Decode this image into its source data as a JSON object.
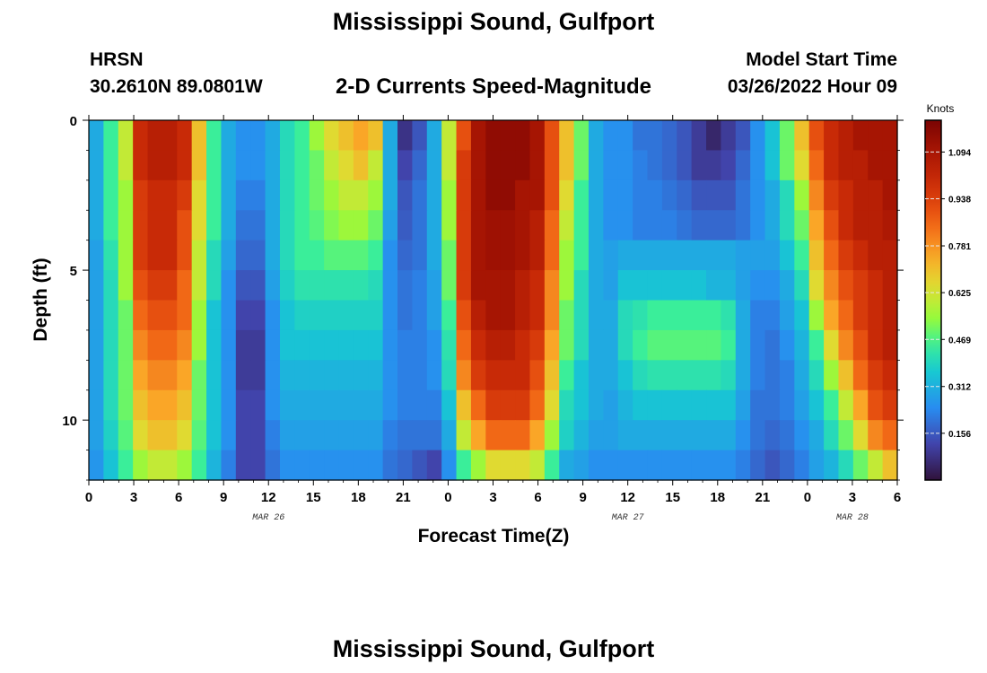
{
  "page": {
    "title": "Mississippi Sound, Gulfport",
    "station_id": "HRSN",
    "station_coords": "30.2610N  89.0801W",
    "subtitle": "2-D Currents Speed-Magnitude",
    "model_start_label": "Model Start Time",
    "model_start_value": "03/26/2022 Hour 09",
    "footer_title": "Mississippi Sound, Gulfport"
  },
  "chart_data": {
    "type": "heatmap",
    "title": "2-D Currents Speed-Magnitude",
    "xlabel": "Forecast Time(Z)",
    "ylabel": "Depth (ft)",
    "x_tick_labels": [
      "0",
      "3",
      "6",
      "9",
      "12",
      "15",
      "18",
      "21",
      "0",
      "3",
      "6",
      "9",
      "12",
      "15",
      "18",
      "21",
      "0",
      "3",
      "6"
    ],
    "x_hours_since_mar26_00z": [
      0,
      3,
      6,
      9,
      12,
      15,
      18,
      21,
      24,
      27,
      30,
      33,
      36,
      39,
      42,
      45,
      48,
      51,
      54
    ],
    "date_labels": [
      {
        "label": "MAR 26",
        "hour": 12
      },
      {
        "label": "MAR 27",
        "hour": 36
      },
      {
        "label": "MAR 28",
        "hour": 51
      }
    ],
    "y_tick_labels": [
      "0",
      "5",
      "10"
    ],
    "y_ticks_ft": [
      0,
      5,
      10
    ],
    "ylim": [
      0,
      12
    ],
    "y_inverted": true,
    "colorbar": {
      "label": "Knots",
      "ticks": [
        "1.094",
        "0.938",
        "0.781",
        "0.625",
        "0.469",
        "0.312",
        "0.156"
      ],
      "tick_values": [
        1.094,
        0.938,
        0.781,
        0.625,
        0.469,
        0.312,
        0.156
      ],
      "range": [
        0,
        1.2
      ],
      "colormap": "turbo"
    },
    "depth_rows_ft": [
      0.5,
      1.5,
      2.5,
      3.5,
      4.5,
      5.5,
      6.5,
      7.5,
      8.5,
      9.5,
      10.5,
      11.5
    ],
    "time_columns_hours": [
      0,
      1,
      2,
      3,
      4,
      5,
      6,
      7,
      8,
      9,
      10,
      11,
      12,
      13,
      14,
      15,
      16,
      17,
      18,
      19,
      20,
      21,
      22,
      23,
      24,
      25,
      26,
      27,
      28,
      29,
      30,
      31,
      32,
      33,
      34,
      35,
      36,
      37,
      38,
      39,
      40,
      41,
      42,
      43,
      44,
      45,
      46,
      47,
      48,
      49,
      50,
      51,
      52,
      53,
      54
    ],
    "speed_knots": [
      [
        0.3,
        0.45,
        0.6,
        1.0,
        1.05,
        1.05,
        1.0,
        0.7,
        0.45,
        0.3,
        0.25,
        0.25,
        0.3,
        0.4,
        0.45,
        0.55,
        0.65,
        0.7,
        0.75,
        0.7,
        0.3,
        0.08,
        0.15,
        0.3,
        0.6,
        0.9,
        1.1,
        1.15,
        1.15,
        1.15,
        1.1,
        0.9,
        0.7,
        0.5,
        0.3,
        0.25,
        0.25,
        0.2,
        0.2,
        0.18,
        0.15,
        0.1,
        0.05,
        0.1,
        0.15,
        0.25,
        0.35,
        0.5,
        0.7,
        0.9,
        1.0,
        1.05,
        1.1,
        1.1,
        1.1
      ],
      [
        0.3,
        0.45,
        0.6,
        1.0,
        1.05,
        1.05,
        1.0,
        0.7,
        0.45,
        0.3,
        0.25,
        0.25,
        0.3,
        0.4,
        0.45,
        0.5,
        0.6,
        0.65,
        0.7,
        0.6,
        0.3,
        0.12,
        0.18,
        0.3,
        0.6,
        0.95,
        1.1,
        1.15,
        1.15,
        1.15,
        1.1,
        0.9,
        0.7,
        0.5,
        0.3,
        0.25,
        0.25,
        0.22,
        0.2,
        0.18,
        0.15,
        0.1,
        0.1,
        0.12,
        0.18,
        0.25,
        0.35,
        0.5,
        0.65,
        0.85,
        1.0,
        1.05,
        1.05,
        1.1,
        1.1
      ],
      [
        0.3,
        0.45,
        0.55,
        0.95,
        1.0,
        1.0,
        0.95,
        0.65,
        0.45,
        0.3,
        0.22,
        0.22,
        0.3,
        0.4,
        0.45,
        0.5,
        0.55,
        0.6,
        0.6,
        0.55,
        0.3,
        0.15,
        0.2,
        0.3,
        0.55,
        0.95,
        1.1,
        1.15,
        1.15,
        1.1,
        1.1,
        0.9,
        0.65,
        0.45,
        0.3,
        0.25,
        0.25,
        0.22,
        0.22,
        0.2,
        0.18,
        0.15,
        0.15,
        0.15,
        0.2,
        0.25,
        0.3,
        0.4,
        0.55,
        0.8,
        0.95,
        1.0,
        1.05,
        1.05,
        1.1
      ],
      [
        0.3,
        0.45,
        0.55,
        0.95,
        1.0,
        1.0,
        0.9,
        0.65,
        0.45,
        0.3,
        0.2,
        0.2,
        0.3,
        0.4,
        0.45,
        0.48,
        0.52,
        0.55,
        0.55,
        0.5,
        0.28,
        0.16,
        0.2,
        0.3,
        0.55,
        0.95,
        1.1,
        1.12,
        1.12,
        1.1,
        1.05,
        0.85,
        0.6,
        0.45,
        0.3,
        0.25,
        0.25,
        0.22,
        0.22,
        0.22,
        0.2,
        0.18,
        0.18,
        0.18,
        0.2,
        0.25,
        0.3,
        0.4,
        0.5,
        0.75,
        0.9,
        1.0,
        1.05,
        1.05,
        1.08
      ],
      [
        0.28,
        0.42,
        0.55,
        0.95,
        1.0,
        1.0,
        0.9,
        0.6,
        0.4,
        0.28,
        0.18,
        0.18,
        0.3,
        0.4,
        0.45,
        0.45,
        0.48,
        0.48,
        0.48,
        0.45,
        0.25,
        0.18,
        0.2,
        0.3,
        0.5,
        0.95,
        1.1,
        1.12,
        1.12,
        1.1,
        1.05,
        0.85,
        0.55,
        0.45,
        0.3,
        0.28,
        0.3,
        0.3,
        0.3,
        0.3,
        0.3,
        0.3,
        0.3,
        0.3,
        0.28,
        0.28,
        0.28,
        0.35,
        0.45,
        0.7,
        0.85,
        0.95,
        1.0,
        1.05,
        1.05
      ],
      [
        0.28,
        0.4,
        0.55,
        0.9,
        0.95,
        0.95,
        0.85,
        0.6,
        0.4,
        0.25,
        0.15,
        0.15,
        0.28,
        0.38,
        0.42,
        0.42,
        0.42,
        0.42,
        0.42,
        0.4,
        0.25,
        0.2,
        0.22,
        0.28,
        0.5,
        0.95,
        1.1,
        1.1,
        1.1,
        1.05,
        1.0,
        0.8,
        0.55,
        0.4,
        0.3,
        0.28,
        0.35,
        0.35,
        0.35,
        0.35,
        0.35,
        0.35,
        0.32,
        0.32,
        0.28,
        0.25,
        0.25,
        0.3,
        0.4,
        0.65,
        0.8,
        0.9,
        0.95,
        1.0,
        1.05
      ],
      [
        0.28,
        0.4,
        0.5,
        0.85,
        0.9,
        0.9,
        0.85,
        0.55,
        0.35,
        0.25,
        0.12,
        0.12,
        0.25,
        0.35,
        0.38,
        0.38,
        0.38,
        0.38,
        0.38,
        0.38,
        0.25,
        0.2,
        0.22,
        0.28,
        0.45,
        0.9,
        1.05,
        1.1,
        1.1,
        1.05,
        1.0,
        0.8,
        0.5,
        0.4,
        0.3,
        0.3,
        0.4,
        0.42,
        0.45,
        0.45,
        0.45,
        0.45,
        0.45,
        0.42,
        0.3,
        0.22,
        0.22,
        0.28,
        0.35,
        0.55,
        0.75,
        0.85,
        0.95,
        1.0,
        1.05
      ],
      [
        0.28,
        0.4,
        0.5,
        0.8,
        0.85,
        0.85,
        0.8,
        0.55,
        0.35,
        0.25,
        0.1,
        0.1,
        0.25,
        0.35,
        0.35,
        0.35,
        0.35,
        0.35,
        0.35,
        0.35,
        0.25,
        0.22,
        0.22,
        0.25,
        0.42,
        0.85,
        1.0,
        1.05,
        1.05,
        1.0,
        0.95,
        0.75,
        0.5,
        0.4,
        0.3,
        0.3,
        0.4,
        0.45,
        0.48,
        0.48,
        0.48,
        0.48,
        0.48,
        0.45,
        0.3,
        0.22,
        0.2,
        0.25,
        0.32,
        0.45,
        0.65,
        0.8,
        0.9,
        1.0,
        1.05
      ],
      [
        0.28,
        0.4,
        0.5,
        0.75,
        0.8,
        0.8,
        0.75,
        0.5,
        0.35,
        0.25,
        0.1,
        0.1,
        0.25,
        0.32,
        0.32,
        0.32,
        0.32,
        0.32,
        0.32,
        0.32,
        0.25,
        0.22,
        0.22,
        0.25,
        0.4,
        0.8,
        0.95,
        1.0,
        1.0,
        1.0,
        0.9,
        0.7,
        0.45,
        0.35,
        0.3,
        0.3,
        0.35,
        0.4,
        0.42,
        0.42,
        0.42,
        0.42,
        0.42,
        0.4,
        0.3,
        0.22,
        0.2,
        0.22,
        0.3,
        0.4,
        0.55,
        0.7,
        0.85,
        0.95,
        1.0
      ],
      [
        0.28,
        0.4,
        0.5,
        0.7,
        0.75,
        0.75,
        0.7,
        0.5,
        0.35,
        0.25,
        0.12,
        0.12,
        0.25,
        0.3,
        0.3,
        0.3,
        0.3,
        0.3,
        0.3,
        0.3,
        0.25,
        0.22,
        0.22,
        0.22,
        0.35,
        0.7,
        0.85,
        0.95,
        0.95,
        0.95,
        0.85,
        0.65,
        0.4,
        0.35,
        0.3,
        0.28,
        0.32,
        0.35,
        0.35,
        0.35,
        0.35,
        0.35,
        0.35,
        0.35,
        0.28,
        0.2,
        0.2,
        0.22,
        0.28,
        0.35,
        0.45,
        0.6,
        0.75,
        0.9,
        0.95
      ],
      [
        0.28,
        0.38,
        0.48,
        0.65,
        0.7,
        0.7,
        0.65,
        0.48,
        0.35,
        0.25,
        0.12,
        0.12,
        0.22,
        0.28,
        0.28,
        0.28,
        0.28,
        0.28,
        0.28,
        0.28,
        0.22,
        0.2,
        0.2,
        0.2,
        0.3,
        0.6,
        0.75,
        0.85,
        0.85,
        0.85,
        0.75,
        0.55,
        0.38,
        0.32,
        0.28,
        0.28,
        0.3,
        0.3,
        0.3,
        0.3,
        0.3,
        0.3,
        0.3,
        0.3,
        0.25,
        0.2,
        0.18,
        0.2,
        0.25,
        0.3,
        0.4,
        0.5,
        0.65,
        0.8,
        0.85
      ],
      [
        0.26,
        0.35,
        0.45,
        0.55,
        0.6,
        0.6,
        0.55,
        0.45,
        0.32,
        0.22,
        0.12,
        0.12,
        0.2,
        0.25,
        0.25,
        0.25,
        0.25,
        0.25,
        0.25,
        0.25,
        0.2,
        0.18,
        0.15,
        0.12,
        0.25,
        0.45,
        0.55,
        0.65,
        0.65,
        0.65,
        0.6,
        0.45,
        0.3,
        0.28,
        0.25,
        0.25,
        0.25,
        0.25,
        0.25,
        0.25,
        0.25,
        0.25,
        0.25,
        0.25,
        0.22,
        0.18,
        0.15,
        0.18,
        0.22,
        0.28,
        0.32,
        0.4,
        0.5,
        0.6,
        0.7
      ]
    ]
  }
}
